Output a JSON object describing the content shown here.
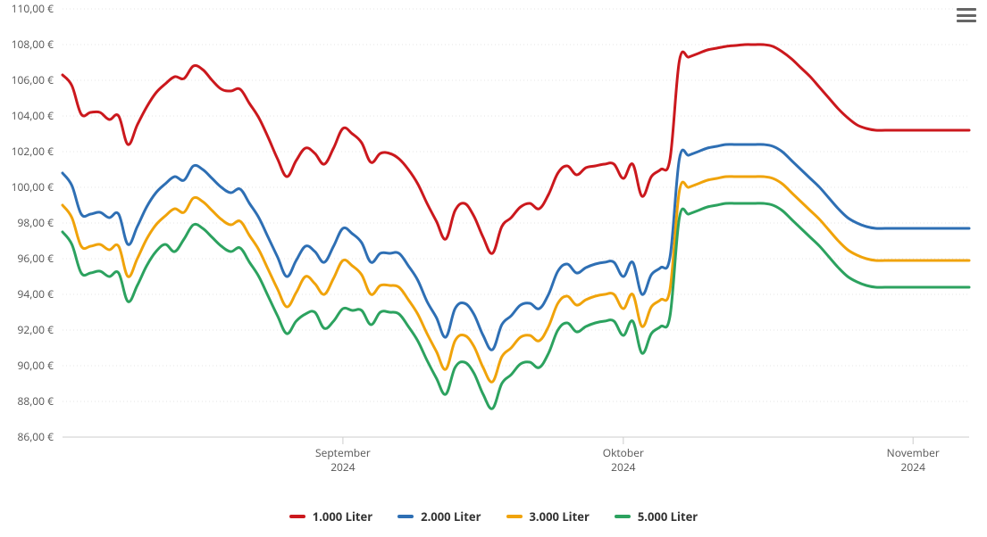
{
  "chart": {
    "type": "line",
    "background_color": "#ffffff",
    "grid_color": "#e6e6e6",
    "axis_line_color": "#cccccc",
    "text_color": "#555555",
    "line_width": 3,
    "y": {
      "min": 86,
      "max": 110,
      "ticks": [
        86,
        88,
        90,
        92,
        94,
        96,
        98,
        100,
        102,
        104,
        106,
        108,
        110
      ],
      "tick_labels": [
        "86,00 €",
        "88,00 €",
        "90,00 €",
        "92,00 €",
        "94,00 €",
        "96,00 €",
        "98,00 €",
        "100,00 €",
        "102,00 €",
        "104,00 €",
        "106,00 €",
        "108,00 €",
        "110,00 €"
      ]
    },
    "x": {
      "n_points": 98,
      "ticks": [
        {
          "index": 30,
          "line1": "September",
          "line2": "2024"
        },
        {
          "index": 60,
          "line1": "Oktober",
          "line2": "2024"
        },
        {
          "index": 91,
          "line1": "November",
          "line2": "2024"
        }
      ]
    },
    "series": [
      {
        "name": "1.000 Liter",
        "color": "#cb181d",
        "values": [
          106.3,
          105.7,
          104.1,
          104.2,
          104.2,
          103.8,
          104.0,
          102.4,
          103.5,
          104.5,
          105.3,
          105.8,
          106.2,
          106.1,
          106.8,
          106.6,
          106.0,
          105.5,
          105.4,
          105.5,
          104.7,
          103.9,
          102.8,
          101.6,
          100.6,
          101.5,
          102.2,
          101.9,
          101.3,
          102.2,
          103.3,
          103.0,
          102.5,
          101.4,
          101.9,
          101.9,
          101.6,
          101.0,
          100.2,
          99.1,
          98.1,
          97.1,
          98.7,
          99.1,
          98.4,
          97.2,
          96.3,
          97.8,
          98.3,
          98.9,
          99.1,
          98.8,
          99.6,
          100.8,
          101.2,
          100.7,
          101.1,
          101.2,
          101.3,
          101.3,
          100.5,
          101.3,
          99.5,
          100.6,
          101.0,
          101.6,
          107.1,
          107.3,
          107.5,
          107.7,
          107.8,
          107.9,
          107.95,
          108.0,
          108.0,
          108.0,
          107.9,
          107.6,
          107.2,
          106.7,
          106.2,
          105.6,
          105.0,
          104.4,
          103.9,
          103.5,
          103.3,
          103.2,
          103.2,
          103.2,
          103.2,
          103.2,
          103.2,
          103.2,
          103.2,
          103.2,
          103.2,
          103.2
        ]
      },
      {
        "name": "2.000 Liter",
        "color": "#2e6fb4",
        "values": [
          100.8,
          100.1,
          98.5,
          98.5,
          98.6,
          98.3,
          98.5,
          96.8,
          97.8,
          98.9,
          99.7,
          100.2,
          100.6,
          100.4,
          101.2,
          101.0,
          100.5,
          100.0,
          99.7,
          99.9,
          99.1,
          98.3,
          97.2,
          96.1,
          95.0,
          95.9,
          96.7,
          96.4,
          95.8,
          96.7,
          97.7,
          97.4,
          96.9,
          95.8,
          96.3,
          96.3,
          96.3,
          95.6,
          94.8,
          93.6,
          92.7,
          91.6,
          93.2,
          93.5,
          92.9,
          91.7,
          90.9,
          92.3,
          92.8,
          93.4,
          93.5,
          93.2,
          94.0,
          95.3,
          95.7,
          95.2,
          95.5,
          95.7,
          95.8,
          95.8,
          95.0,
          95.8,
          94.0,
          95.1,
          95.5,
          96.1,
          101.6,
          101.8,
          102.0,
          102.2,
          102.3,
          102.4,
          102.4,
          102.4,
          102.4,
          102.4,
          102.3,
          102.0,
          101.5,
          101.0,
          100.5,
          100.0,
          99.4,
          98.8,
          98.3,
          98.0,
          97.8,
          97.7,
          97.7,
          97.7,
          97.7,
          97.7,
          97.7,
          97.7,
          97.7,
          97.7,
          97.7,
          97.7
        ]
      },
      {
        "name": "3.000 Liter",
        "color": "#f0a30a",
        "values": [
          99.0,
          98.3,
          96.7,
          96.7,
          96.8,
          96.5,
          96.7,
          95.0,
          96.0,
          97.1,
          97.9,
          98.4,
          98.8,
          98.6,
          99.4,
          99.2,
          98.7,
          98.2,
          97.9,
          98.1,
          97.3,
          96.5,
          95.4,
          94.3,
          93.3,
          94.1,
          95.0,
          94.6,
          94.0,
          94.9,
          95.9,
          95.6,
          95.1,
          94.0,
          94.5,
          94.5,
          94.4,
          93.7,
          92.9,
          91.8,
          90.8,
          89.8,
          91.4,
          91.7,
          91.1,
          89.9,
          89.1,
          90.5,
          91.0,
          91.6,
          91.7,
          91.4,
          92.2,
          93.5,
          93.9,
          93.4,
          93.7,
          93.9,
          94.0,
          94.0,
          93.2,
          94.0,
          92.2,
          93.3,
          93.7,
          94.3,
          99.8,
          100.0,
          100.2,
          100.4,
          100.5,
          100.6,
          100.6,
          100.6,
          100.6,
          100.6,
          100.5,
          100.2,
          99.7,
          99.2,
          98.7,
          98.2,
          97.6,
          97.0,
          96.5,
          96.2,
          96.0,
          95.9,
          95.9,
          95.9,
          95.9,
          95.9,
          95.9,
          95.9,
          95.9,
          95.9,
          95.9,
          95.9
        ]
      },
      {
        "name": "5.000 Liter",
        "color": "#2ca25f",
        "values": [
          97.5,
          96.8,
          95.2,
          95.2,
          95.3,
          95.0,
          95.2,
          93.6,
          94.5,
          95.6,
          96.4,
          96.8,
          96.4,
          97.1,
          97.9,
          97.7,
          97.2,
          96.7,
          96.4,
          96.6,
          95.8,
          95.0,
          93.9,
          92.8,
          91.8,
          92.5,
          92.9,
          93.0,
          92.1,
          92.5,
          93.2,
          93.1,
          93.1,
          92.3,
          93.0,
          93.0,
          92.9,
          92.2,
          91.4,
          90.3,
          89.3,
          88.4,
          89.9,
          90.2,
          89.6,
          88.4,
          87.6,
          89.0,
          89.5,
          90.1,
          90.2,
          89.9,
          90.7,
          92.0,
          92.4,
          91.9,
          92.2,
          92.4,
          92.5,
          92.5,
          91.7,
          92.5,
          90.7,
          91.8,
          92.2,
          92.8,
          98.3,
          98.5,
          98.7,
          98.9,
          99.0,
          99.1,
          99.1,
          99.1,
          99.1,
          99.1,
          99.0,
          98.7,
          98.2,
          97.7,
          97.2,
          96.7,
          96.1,
          95.5,
          95.0,
          94.7,
          94.5,
          94.4,
          94.4,
          94.4,
          94.4,
          94.4,
          94.4,
          94.4,
          94.4,
          94.4,
          94.4,
          94.4
        ]
      }
    ],
    "menu_icon_color": "#666666"
  }
}
